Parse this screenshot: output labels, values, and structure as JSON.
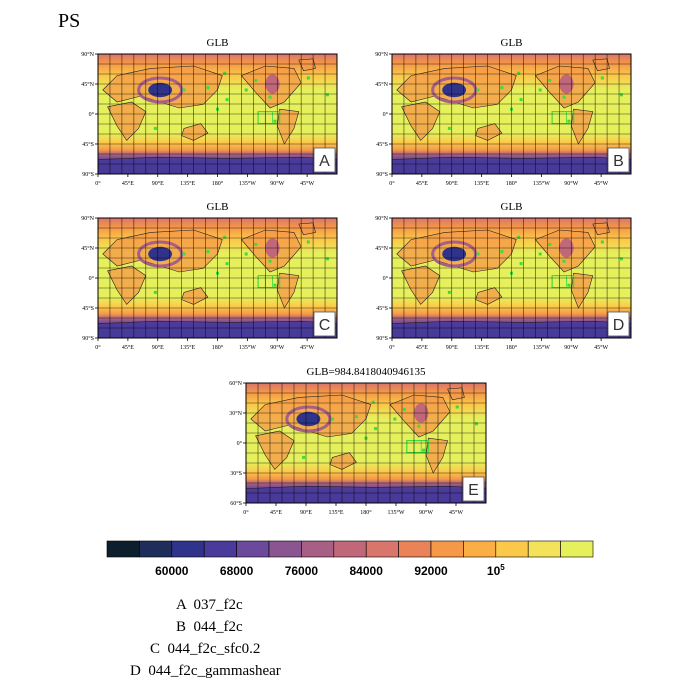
{
  "figure_title": "PS",
  "chart_data": [
    {
      "type": "heatmap",
      "panel_title": "GLB",
      "panel_letter": "A",
      "x_ticks": [
        "0°",
        "45°E",
        "90°E",
        "135°E",
        "180°",
        "135°W",
        "90°W",
        "45°W"
      ],
      "y_ticks": [
        "90°N",
        "45°N",
        "0°",
        "45°S",
        "90°S"
      ]
    },
    {
      "type": "heatmap",
      "panel_title": "GLB",
      "panel_letter": "B",
      "x_ticks": [
        "0°",
        "45°E",
        "90°E",
        "135°E",
        "180°",
        "135°W",
        "90°W",
        "45°W"
      ],
      "y_ticks": [
        "90°N",
        "45°N",
        "0°",
        "45°S",
        "90°S"
      ]
    },
    {
      "type": "heatmap",
      "panel_title": "GLB",
      "panel_letter": "C",
      "x_ticks": [
        "0°",
        "45°E",
        "90°E",
        "135°E",
        "180°",
        "135°W",
        "90°W",
        "45°W"
      ],
      "y_ticks": [
        "90°N",
        "45°N",
        "0°",
        "45°S",
        "90°S"
      ]
    },
    {
      "type": "heatmap",
      "panel_title": "GLB",
      "panel_letter": "D",
      "x_ticks": [
        "0°",
        "45°E",
        "90°E",
        "135°E",
        "180°",
        "135°W",
        "90°W",
        "45°W"
      ],
      "y_ticks": [
        "90°N",
        "45°N",
        "0°",
        "45°S",
        "90°S"
      ]
    },
    {
      "type": "heatmap",
      "panel_title": "GLB=984.8418040946135",
      "panel_letter": "E",
      "x_ticks": [
        "0°",
        "45°E",
        "90°E",
        "135°E",
        "180°",
        "135°W",
        "90°W",
        "45°W"
      ],
      "y_ticks": [
        "60°N",
        "30°N",
        "0°",
        "30°S",
        "60°S"
      ]
    }
  ],
  "colorbar": {
    "colors": [
      "#0d1f2d",
      "#1e2d5a",
      "#30338a",
      "#4a3b9a",
      "#6b4a9c",
      "#8a5590",
      "#a75f86",
      "#c0687a",
      "#d9766b",
      "#ea8458",
      "#f59848",
      "#fbae44",
      "#fcc84a",
      "#f3e25a",
      "#e6f05c"
    ],
    "labels": [
      "60000",
      "68000",
      "76000",
      "84000",
      "92000"
    ],
    "last_label_base": "10",
    "last_label_exp": "5"
  },
  "legend": [
    {
      "letter": "A",
      "name": "037_f2c"
    },
    {
      "letter": "B",
      "name": "044_f2c"
    },
    {
      "letter": "C",
      "name": "044_f2c_sfc0.2"
    },
    {
      "letter": "D",
      "name": "044_f2c_gammashear"
    }
  ]
}
